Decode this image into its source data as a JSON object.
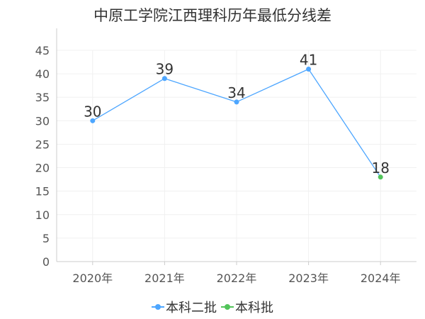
{
  "chart_data": {
    "type": "line",
    "title": "中原工学院江西理科历年最低分线差",
    "categories": [
      "2020年",
      "2021年",
      "2022年",
      "2023年",
      "2024年"
    ],
    "yticks": [
      0,
      5,
      10,
      15,
      20,
      25,
      30,
      35,
      40,
      45
    ],
    "ylim": [
      0,
      45
    ],
    "grid": true,
    "legend_position": "bottom",
    "series": [
      {
        "name": "本科二批",
        "color": "#4da6ff",
        "values": [
          30,
          39,
          34,
          41,
          null
        ]
      },
      {
        "name": "本科批",
        "color": "#52c45a",
        "values": [
          null,
          null,
          null,
          null,
          18
        ]
      }
    ]
  }
}
